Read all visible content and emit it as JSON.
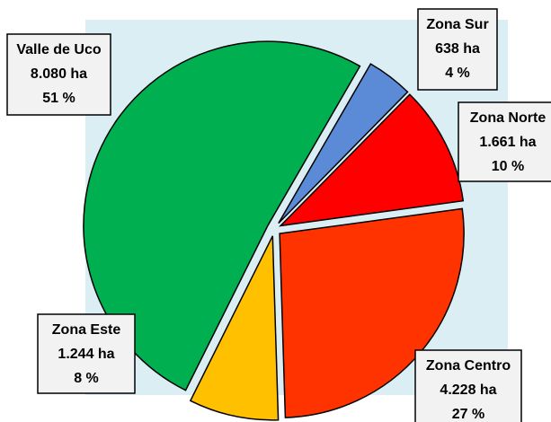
{
  "chart_data": {
    "type": "pie",
    "categories": [
      "Zona Sur",
      "Zona Norte",
      "Zona Centro",
      "Zona Este",
      "Valle de Uco"
    ],
    "values": [
      638,
      1661,
      4228,
      1244,
      8080
    ],
    "value_labels": [
      "638 ha",
      "1.661 ha",
      "4.228 ha",
      "1.244 ha",
      "8.080 ha"
    ],
    "percents": [
      4,
      10,
      27,
      8,
      51
    ],
    "percent_labels": [
      "4 %",
      "10 %",
      "27 %",
      "8 %",
      "51 %"
    ],
    "colors": [
      "#5b8bd6",
      "#ff0000",
      "#ff3300",
      "#ffc000",
      "#00b050"
    ]
  }
}
